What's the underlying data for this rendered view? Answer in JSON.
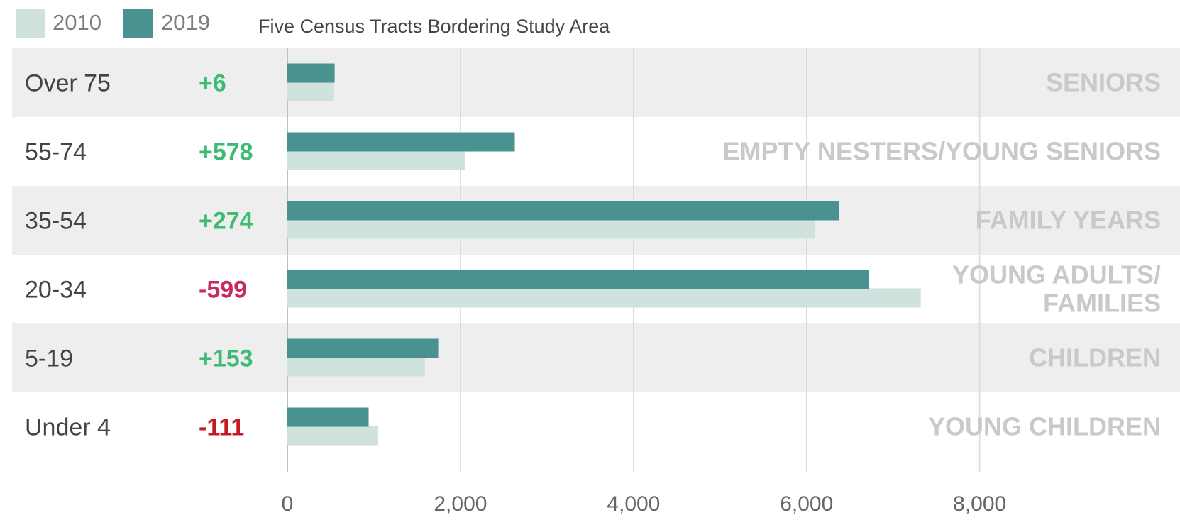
{
  "legend": {
    "items": [
      {
        "label": "2010",
        "color": "#cfe2dd"
      },
      {
        "label": "2019",
        "color": "#4a9290"
      }
    ],
    "caption": "Five Census Tracts Bordering Study Area"
  },
  "colors": {
    "band": "#eeeeee",
    "grid": "#d9d9d9",
    "axis": "#bfbfbf",
    "positive": "#3dbb72",
    "negative_large": "#c72c5a",
    "negative_small": "#c41a22",
    "group_label": "#c9c9c9",
    "category_label": "#444444",
    "tick_label": "#666666"
  },
  "chart_data": {
    "type": "bar",
    "orientation": "horizontal",
    "categories": [
      "Over 75",
      "55-74",
      "35-54",
      "20-34",
      "5-19",
      "Under 4"
    ],
    "series": [
      {
        "name": "2010",
        "values": [
          540,
          2050,
          6100,
          7320,
          1590,
          1050
        ]
      },
      {
        "name": "2019",
        "values": [
          546,
          2628,
          6374,
          6721,
          1743,
          939
        ]
      }
    ],
    "changes": [
      "+6",
      "+578",
      "+274",
      "-599",
      "+153",
      "-111"
    ],
    "groups": [
      [
        "SENIORS"
      ],
      [
        "EMPTY NESTERS/YOUNG SENIORS"
      ],
      [
        "FAMILY YEARS"
      ],
      [
        "YOUNG ADULTS/",
        "FAMILIES"
      ],
      [
        "CHILDREN"
      ],
      [
        "YOUNG CHILDREN"
      ]
    ],
    "title": "Five Census Tracts Bordering Study Area",
    "xticks": [
      "0",
      "2,000",
      "4,000",
      "6,000",
      "8,000"
    ],
    "xtick_values": [
      0,
      2000,
      4000,
      6000,
      8000
    ],
    "xlim": [
      0,
      10000
    ],
    "grid": true,
    "legend_position": "top-left"
  }
}
